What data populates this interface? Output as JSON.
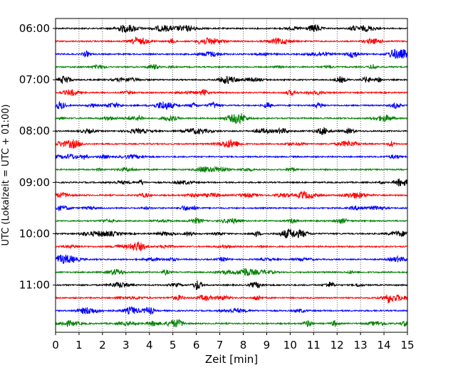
{
  "chart_data": {
    "type": "line",
    "title": "",
    "xlabel": "Zeit  [min]",
    "ylabel": "UTC (Lokalzeit = UTC + 01:00)",
    "xlim": [
      0,
      15
    ],
    "x_ticks": [
      "0",
      "1",
      "2",
      "3",
      "4",
      "5",
      "6",
      "7",
      "8",
      "9",
      "10",
      "11",
      "12",
      "13",
      "14",
      "15"
    ],
    "y_ticks": [
      "06:00",
      "07:00",
      "08:00",
      "09:00",
      "10:00",
      "11:00"
    ],
    "row_interval_min": 15,
    "grid": "vertical dotted lines at each minute",
    "trace_colors": [
      "#000000",
      "#ff0000",
      "#0000ff",
      "#008000"
    ],
    "rows": [
      {
        "start": "06:00",
        "color": "#000000"
      },
      {
        "start": "06:15",
        "color": "#ff0000"
      },
      {
        "start": "06:30",
        "color": "#0000ff"
      },
      {
        "start": "06:45",
        "color": "#008000"
      },
      {
        "start": "07:00",
        "color": "#000000"
      },
      {
        "start": "07:15",
        "color": "#ff0000"
      },
      {
        "start": "07:30",
        "color": "#0000ff"
      },
      {
        "start": "07:45",
        "color": "#008000"
      },
      {
        "start": "08:00",
        "color": "#000000"
      },
      {
        "start": "08:15",
        "color": "#ff0000"
      },
      {
        "start": "08:30",
        "color": "#0000ff"
      },
      {
        "start": "08:45",
        "color": "#008000"
      },
      {
        "start": "09:00",
        "color": "#000000"
      },
      {
        "start": "09:15",
        "color": "#ff0000"
      },
      {
        "start": "09:30",
        "color": "#0000ff"
      },
      {
        "start": "09:45",
        "color": "#008000"
      },
      {
        "start": "10:00",
        "color": "#000000"
      },
      {
        "start": "10:15",
        "color": "#ff0000"
      },
      {
        "start": "10:30",
        "color": "#0000ff"
      },
      {
        "start": "10:45",
        "color": "#008000"
      },
      {
        "start": "11:00",
        "color": "#000000"
      },
      {
        "start": "11:15",
        "color": "#ff0000"
      },
      {
        "start": "11:30",
        "color": "#0000ff"
      },
      {
        "start": "11:45",
        "color": "#008000"
      }
    ]
  }
}
